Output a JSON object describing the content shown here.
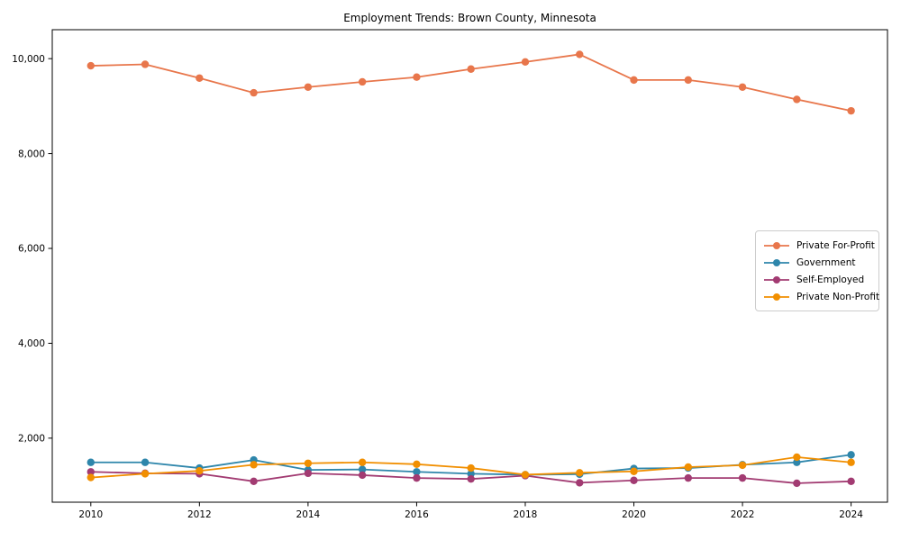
{
  "chart_data": {
    "type": "line",
    "title": "Employment Trends: Brown County, Minnesota",
    "xlabel": "",
    "ylabel": "",
    "x": [
      2010,
      2011,
      2012,
      2013,
      2014,
      2015,
      2016,
      2017,
      2018,
      2019,
      2020,
      2021,
      2022,
      2023,
      2024
    ],
    "series": [
      {
        "name": "Private For-Profit",
        "color": "#E8764B",
        "values": [
          9850,
          9880,
          9590,
          9280,
          9400,
          9510,
          9610,
          9780,
          9930,
          10090,
          9550,
          9550,
          9400,
          9140,
          8900
        ]
      },
      {
        "name": "Government",
        "color": "#2E86AB",
        "values": [
          1490,
          1490,
          1370,
          1540,
          1330,
          1340,
          1290,
          1250,
          1230,
          1240,
          1360,
          1370,
          1440,
          1490,
          1650
        ]
      },
      {
        "name": "Self-Employed",
        "color": "#A23B72",
        "values": [
          1290,
          1260,
          1250,
          1090,
          1260,
          1220,
          1160,
          1140,
          1210,
          1060,
          1110,
          1160,
          1160,
          1050,
          1090
        ]
      },
      {
        "name": "Private Non-Profit",
        "color": "#F18F01",
        "values": [
          1170,
          1250,
          1310,
          1440,
          1470,
          1490,
          1450,
          1370,
          1230,
          1270,
          1300,
          1390,
          1430,
          1600,
          1490
        ]
      }
    ],
    "xticks": [
      2010,
      2012,
      2014,
      2016,
      2018,
      2020,
      2022,
      2024
    ],
    "yticks": [
      2000,
      4000,
      6000,
      8000,
      10000
    ],
    "ytick_labels": [
      "2,000",
      "4,000",
      "6,000",
      "8,000",
      "10,000"
    ],
    "xlim": [
      2009.29,
      2024.67
    ],
    "ylim": [
      650,
      10610
    ],
    "grid": false,
    "legend_position": "center right",
    "axis_color": "#000000",
    "background_color": "#ffffff"
  }
}
